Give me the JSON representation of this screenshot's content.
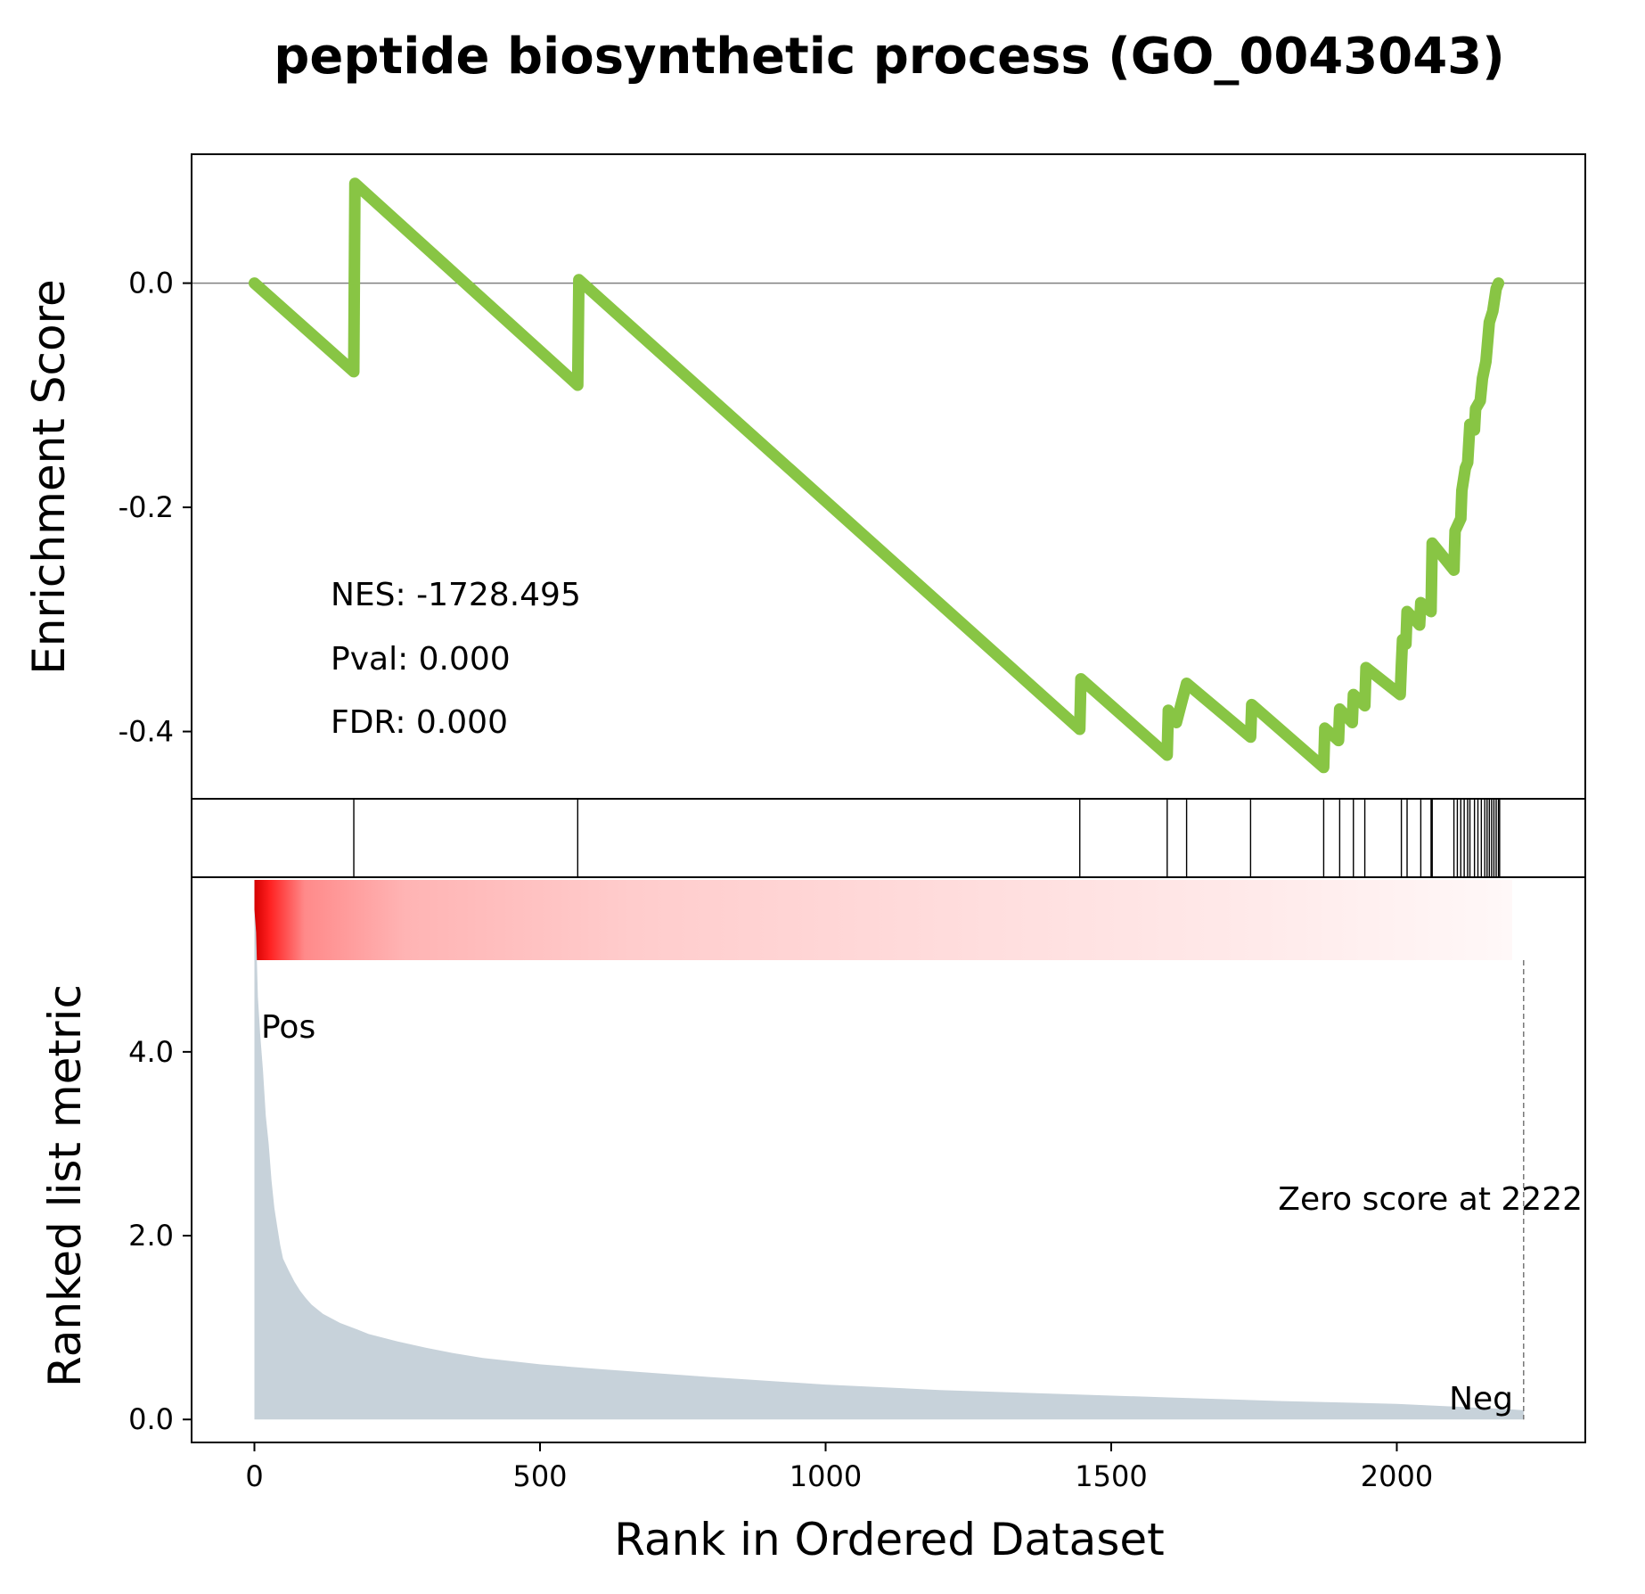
{
  "chart_data": {
    "type": "line",
    "title": "peptide biosynthetic process (GO_0043043)",
    "xlabel": "Rank in Ordered Dataset",
    "xlim": [
      -110,
      2330
    ],
    "xticks": [
      0,
      500,
      1000,
      1500,
      2000
    ],
    "grid": false,
    "enrichment": {
      "ylabel": "Enrichment Score",
      "ylim": [
        -0.46,
        0.115
      ],
      "yticks": [
        0.0,
        -0.2,
        -0.4
      ],
      "ytick_labels": [
        "0.0",
        "-0.2",
        "-0.4"
      ],
      "line_color": "#88c544",
      "zero_line_color": "#808080",
      "points": [
        [
          0,
          0.0
        ],
        [
          174,
          -0.079
        ],
        [
          176,
          0.089
        ],
        [
          566,
          -0.091
        ],
        [
          568,
          0.003
        ],
        [
          1445,
          -0.398
        ],
        [
          1447,
          -0.353
        ],
        [
          1598,
          -0.421
        ],
        [
          1600,
          -0.381
        ],
        [
          1614,
          -0.392
        ],
        [
          1632,
          -0.357
        ],
        [
          1744,
          -0.405
        ],
        [
          1746,
          -0.376
        ],
        [
          1872,
          -0.432
        ],
        [
          1874,
          -0.397
        ],
        [
          1898,
          -0.408
        ],
        [
          1900,
          -0.38
        ],
        [
          1922,
          -0.392
        ],
        [
          1924,
          -0.367
        ],
        [
          1944,
          -0.377
        ],
        [
          1946,
          -0.343
        ],
        [
          2006,
          -0.367
        ],
        [
          2008,
          -0.341
        ],
        [
          2010,
          -0.318
        ],
        [
          2016,
          -0.322
        ],
        [
          2018,
          -0.293
        ],
        [
          2040,
          -0.305
        ],
        [
          2042,
          -0.285
        ],
        [
          2060,
          -0.293
        ],
        [
          2062,
          -0.232
        ],
        [
          2100,
          -0.256
        ],
        [
          2102,
          -0.221
        ],
        [
          2112,
          -0.21
        ],
        [
          2114,
          -0.185
        ],
        [
          2120,
          -0.165
        ],
        [
          2124,
          -0.16
        ],
        [
          2128,
          -0.126
        ],
        [
          2136,
          -0.131
        ],
        [
          2138,
          -0.112
        ],
        [
          2146,
          -0.105
        ],
        [
          2150,
          -0.085
        ],
        [
          2156,
          -0.07
        ],
        [
          2162,
          -0.035
        ],
        [
          2168,
          -0.025
        ],
        [
          2174,
          -0.005
        ],
        [
          2178,
          0.0
        ]
      ],
      "stats": {
        "nes": "NES: -1728.495",
        "pval": "Pval: 0.000",
        "fdr": "FDR: 0.000"
      }
    },
    "hits": {
      "positions": [
        174,
        566,
        1445,
        1598,
        1632,
        1744,
        1872,
        1900,
        1924,
        1944,
        2008,
        2018,
        2042,
        2060,
        2062,
        2100,
        2106,
        2112,
        2118,
        2124,
        2128,
        2136,
        2142,
        2148,
        2154,
        2158,
        2162,
        2166,
        2170,
        2174,
        2178,
        2180
      ],
      "color": "#000000"
    },
    "ranked": {
      "ylabel": "Ranked list metric",
      "ylim": [
        -0.25,
        5.9
      ],
      "yticks": [
        0.0,
        2.0,
        4.0
      ],
      "ytick_labels": [
        "0.0",
        "2.0",
        "4.0"
      ],
      "fill_color": "#c7d2da",
      "heatmap_color": "#ff0000",
      "points": [
        [
          0,
          5.55
        ],
        [
          3,
          5.3
        ],
        [
          6,
          4.6
        ],
        [
          10,
          4.2
        ],
        [
          15,
          3.8
        ],
        [
          20,
          3.3
        ],
        [
          25,
          3.0
        ],
        [
          30,
          2.6
        ],
        [
          35,
          2.3
        ],
        [
          40,
          2.1
        ],
        [
          45,
          1.9
        ],
        [
          50,
          1.75
        ],
        [
          60,
          1.62
        ],
        [
          70,
          1.5
        ],
        [
          80,
          1.4
        ],
        [
          90,
          1.32
        ],
        [
          100,
          1.25
        ],
        [
          120,
          1.15
        ],
        [
          150,
          1.05
        ],
        [
          180,
          0.98
        ],
        [
          200,
          0.93
        ],
        [
          250,
          0.85
        ],
        [
          300,
          0.78
        ],
        [
          350,
          0.72
        ],
        [
          400,
          0.67
        ],
        [
          500,
          0.6
        ],
        [
          600,
          0.55
        ],
        [
          800,
          0.46
        ],
        [
          1000,
          0.38
        ],
        [
          1200,
          0.32
        ],
        [
          1400,
          0.28
        ],
        [
          1600,
          0.24
        ],
        [
          1800,
          0.2
        ],
        [
          2000,
          0.17
        ],
        [
          2100,
          0.14
        ],
        [
          2200,
          0.11
        ],
        [
          2222,
          0.1
        ]
      ],
      "pos_label": "Pos",
      "neg_label": "Neg",
      "pos_color": "#ff0000",
      "neg_color": "#0000ff",
      "zero_score_rank": 2222,
      "zero_score_label": "Zero score at 2222"
    }
  }
}
